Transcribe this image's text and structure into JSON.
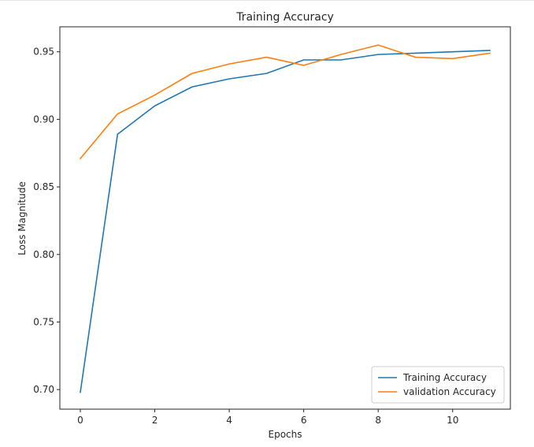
{
  "chart_data": {
    "type": "line",
    "title": "Training Accuracy",
    "xlabel": "Epochs",
    "ylabel": "Loss Magnitude",
    "x": [
      0,
      1,
      2,
      3,
      4,
      5,
      6,
      7,
      8,
      9,
      10,
      11
    ],
    "xlim": [
      -0.55,
      11.55
    ],
    "ylim": [
      0.6855,
      0.9685
    ],
    "xticks": [
      0,
      2,
      4,
      6,
      8,
      10
    ],
    "yticks": [
      0.7,
      0.75,
      0.8,
      0.85,
      0.9,
      0.95
    ],
    "ytick_labels": [
      "0.70",
      "0.75",
      "0.80",
      "0.85",
      "0.90",
      "0.95"
    ],
    "grid": false,
    "legend_position": "bottom-right",
    "series": [
      {
        "name": "Training Accuracy",
        "color": "#1f77b4",
        "values": [
          0.698,
          0.889,
          0.91,
          0.924,
          0.93,
          0.934,
          0.944,
          0.944,
          0.948,
          0.949,
          0.95,
          0.951
        ]
      },
      {
        "name": "validation Accuracy",
        "color": "#ff7f0e",
        "values": [
          0.871,
          0.904,
          0.918,
          0.934,
          0.941,
          0.946,
          0.94,
          0.948,
          0.955,
          0.946,
          0.945,
          0.949
        ]
      }
    ]
  }
}
